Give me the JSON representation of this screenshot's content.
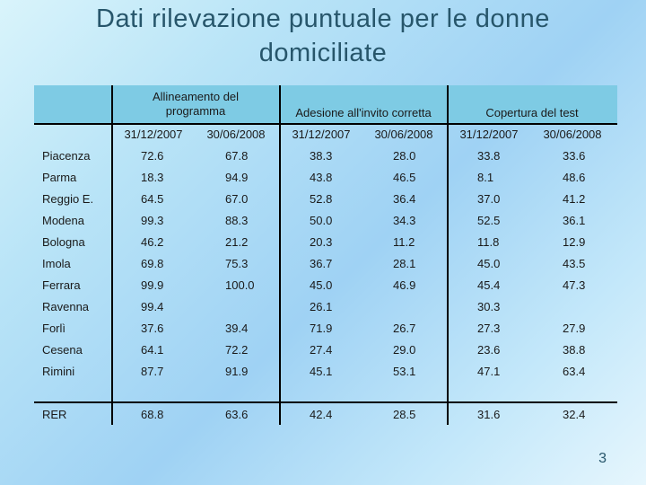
{
  "title_lines": [
    "Dati rilevazione puntuale per le donne",
    "domiciliate"
  ],
  "groups": [
    "Allineamento del programma",
    "Adesione all'invito corretta",
    "Copertura del test"
  ],
  "subheaders": [
    "31/12/2007",
    "30/06/2008",
    "31/12/2007",
    "30/06/2008",
    "31/12/2007",
    "30/06/2008"
  ],
  "rows": [
    {
      "name": "Piacenza",
      "values": [
        "72.6",
        "67.8",
        "38.3",
        "28.0",
        "33.8",
        "33.6"
      ]
    },
    {
      "name": "Parma",
      "values": [
        "18.3",
        "94.9",
        "43.8",
        "46.5",
        "8.1",
        "48.6"
      ]
    },
    {
      "name": "Reggio E.",
      "values": [
        "64.5",
        "67.0",
        "52.8",
        "36.4",
        "37.0",
        "41.2"
      ]
    },
    {
      "name": "Modena",
      "values": [
        "99.3",
        "88.3",
        "50.0",
        "34.3",
        "52.5",
        "36.1"
      ]
    },
    {
      "name": "Bologna",
      "values": [
        "46.2",
        "21.2",
        "20.3",
        "11.2",
        "11.8",
        "12.9"
      ]
    },
    {
      "name": "Imola",
      "values": [
        "69.8",
        "75.3",
        "36.7",
        "28.1",
        "45.0",
        "43.5"
      ]
    },
    {
      "name": "Ferrara",
      "values": [
        "99.9",
        "100.0",
        "45.0",
        "46.9",
        "45.4",
        "47.3"
      ]
    },
    {
      "name": "Ravenna",
      "values": [
        "99.4",
        "",
        "26.1",
        "",
        "30.3",
        ""
      ]
    },
    {
      "name": "Forlì",
      "values": [
        "37.6",
        "39.4",
        "71.9",
        "26.7",
        "27.3",
        "27.9"
      ]
    },
    {
      "name": "Cesena",
      "values": [
        "64.1",
        "72.2",
        "27.4",
        "29.0",
        "23.6",
        "38.8"
      ]
    },
    {
      "name": "Rimini",
      "values": [
        "87.7",
        "91.9",
        "45.1",
        "53.1",
        "47.1",
        "63.4"
      ]
    }
  ],
  "total_row": {
    "name": "RER",
    "values": [
      "68.8",
      "63.6",
      "42.4",
      "28.5",
      "31.6",
      "32.4"
    ]
  },
  "page_number": "3"
}
